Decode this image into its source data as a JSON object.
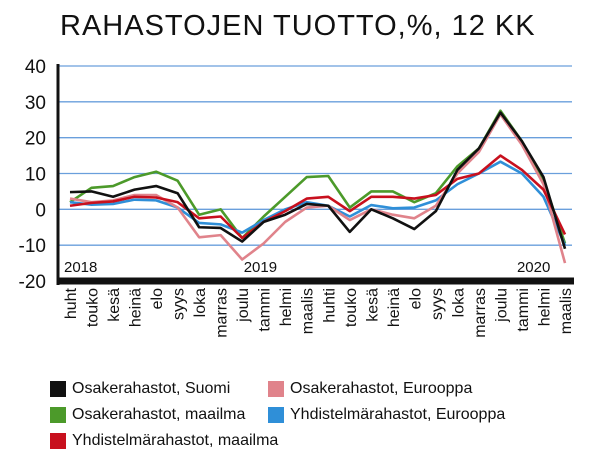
{
  "chart_data": {
    "type": "line",
    "title": "RAHASTOJEN TUOTTO,%, 12 KK",
    "xlabel": "",
    "ylabel": "",
    "ylim": [
      -20,
      40
    ],
    "yticks": [
      40,
      30,
      20,
      10,
      0,
      -10,
      -20
    ],
    "grid": true,
    "legend_position": "bottom",
    "year_labels": [
      {
        "label": "2018",
        "at": 0
      },
      {
        "label": "2019",
        "at": 9
      },
      {
        "label": "2020",
        "at": 21
      }
    ],
    "categories": [
      "huht",
      "touko",
      "kesä",
      "heinä",
      "elo",
      "syys",
      "loka",
      "marras",
      "joulu",
      "tammi",
      "helmi",
      "maalis",
      "huhti",
      "touko",
      "kesä",
      "heinä",
      "elo",
      "syys",
      "loka",
      "marras",
      "joulu",
      "tammi",
      "helmi",
      "maalis"
    ],
    "series": [
      {
        "name": "Osakerahastot, Suomi",
        "color": "#111111",
        "values": [
          4.8,
          5,
          3.5,
          5.5,
          6.5,
          4.5,
          -5,
          -5.2,
          -9,
          -3.5,
          -1.5,
          1.5,
          1,
          -6.3,
          0,
          -2.5,
          -5.5,
          -0.5,
          11,
          17,
          27,
          19,
          9,
          -11
        ]
      },
      {
        "name": "Osakerahastot, Eurooppa",
        "color": "#e0838b",
        "values": [
          3,
          2,
          2.5,
          4,
          4,
          0.5,
          -7.8,
          -7.2,
          -14,
          -9.5,
          -3.5,
          0.5,
          1,
          -3,
          0,
          -1.5,
          -2.5,
          1,
          10,
          16,
          26.5,
          18,
          7,
          -15
        ]
      },
      {
        "name": "Osakerahastot, maailma",
        "color": "#4c9a2a",
        "values": [
          2,
          6,
          6.5,
          9,
          10.5,
          8,
          -1.5,
          0,
          -8,
          -2,
          3.5,
          9,
          9.3,
          0.5,
          5,
          5,
          2,
          4.5,
          12,
          17,
          27.5,
          19,
          8,
          -9.5
        ]
      },
      {
        "name": "Yhdistelmärahastot, Eurooppa",
        "color": "#2f8fd8",
        "values": [
          2,
          1.3,
          1.5,
          2.7,
          2.5,
          0.5,
          -3.8,
          -4.2,
          -6.5,
          -3,
          0,
          2,
          1,
          -2,
          1.2,
          0.3,
          0.5,
          2.5,
          7,
          10,
          13.3,
          10,
          3.5,
          -10
        ]
      },
      {
        "name": "Yhdistelmärahastot, maailma",
        "color": "#c8101e",
        "values": [
          1,
          1.8,
          2.2,
          3.5,
          3.3,
          2,
          -2.5,
          -2,
          -8,
          -3.5,
          -0.5,
          3,
          3.5,
          -0.5,
          3.5,
          3.5,
          3,
          4,
          8.5,
          10,
          15,
          11,
          5.5,
          -7
        ]
      }
    ]
  }
}
